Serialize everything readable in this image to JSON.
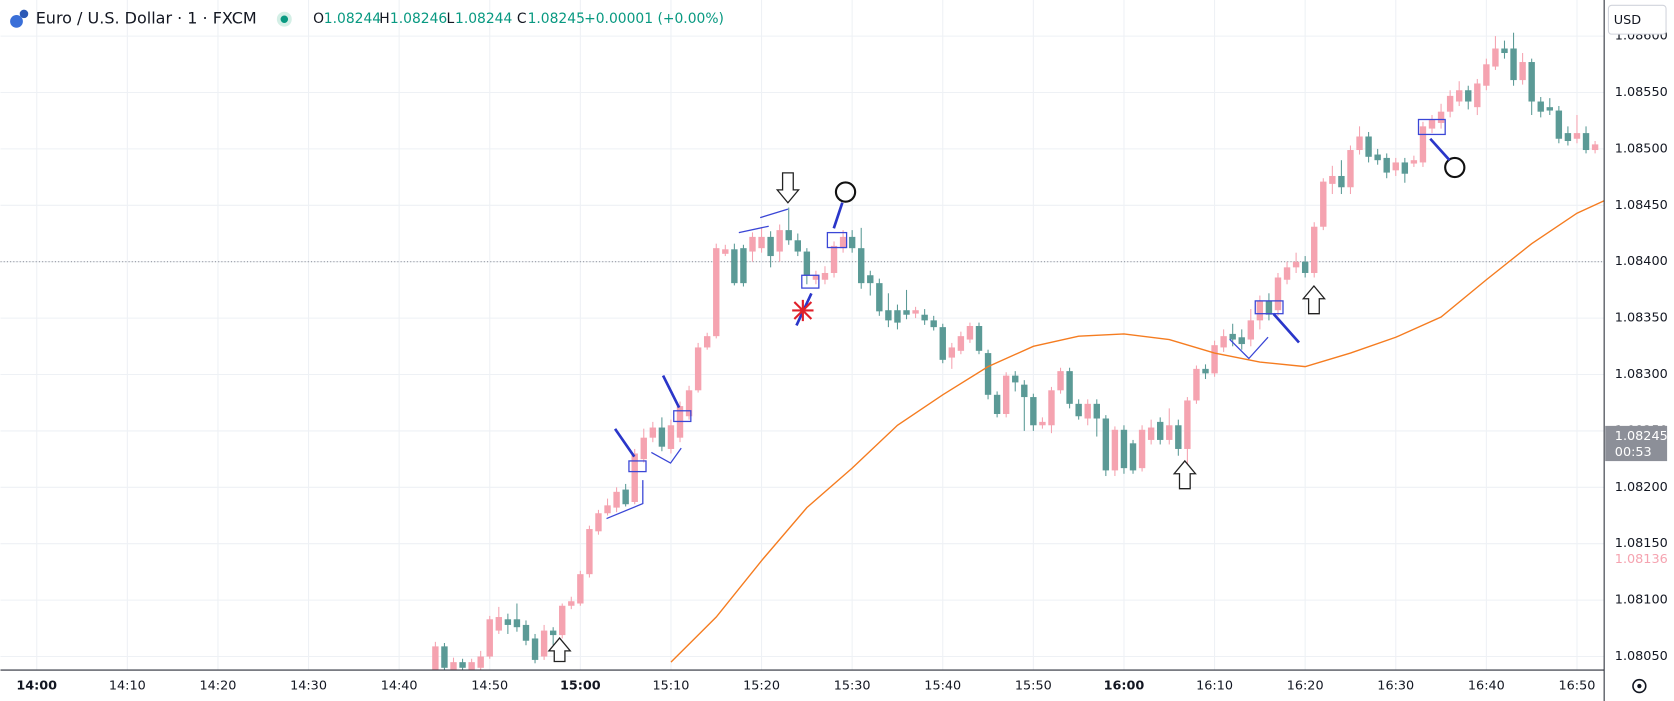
{
  "header": {
    "symbol": "Euro / U.S. Dollar · 1 · FXCM",
    "ohlc": [
      [
        "O",
        "1.08244"
      ],
      [
        "H",
        "1.08246"
      ],
      [
        "L",
        "1.08244"
      ],
      [
        "C",
        "1.08245"
      ]
    ],
    "change": "+0.00001 (+0.00%)",
    "currency": "USD",
    "countdown": "00:53"
  },
  "chart_data": {
    "type": "candlestick",
    "up_color": "#f5a3b0",
    "down_color": "#5b9a96",
    "grid": true,
    "xlim": [
      "13:56",
      "16:53"
    ],
    "ylim": [
      1.08038,
      1.08632
    ],
    "xticks": [
      "14:00",
      "14:10",
      "14:20",
      "14:30",
      "14:40",
      "14:50",
      "15:00",
      "15:10",
      "15:20",
      "15:30",
      "15:40",
      "15:50",
      "16:00",
      "16:10",
      "16:20",
      "16:30",
      "16:40",
      "16:50"
    ],
    "yticks": [
      {
        "value": 1.0805,
        "label": "1.08050"
      },
      {
        "value": 1.081,
        "label": "1.08100"
      },
      {
        "value": 1.0815,
        "label": "1.08150"
      },
      {
        "value": 1.082,
        "label": "1.08200"
      },
      {
        "value": 1.0825,
        "label": "1.08250"
      },
      {
        "value": 1.083,
        "label": "1.08300"
      },
      {
        "value": 1.0835,
        "label": "1.08350"
      },
      {
        "value": 1.084,
        "label": "1.08400"
      },
      {
        "value": 1.0845,
        "label": "1.08450"
      },
      {
        "value": 1.085,
        "label": "1.08500"
      },
      {
        "value": 1.0855,
        "label": "1.08550"
      },
      {
        "value": 1.086,
        "label": "1.08600"
      }
    ],
    "x": [
      "14:44",
      "14:45",
      "14:46",
      "14:47",
      "14:48",
      "14:49",
      "14:50",
      "14:51",
      "14:52",
      "14:53",
      "14:54",
      "14:55",
      "14:56",
      "14:57",
      "14:58",
      "14:59",
      "15:00",
      "15:01",
      "15:02",
      "15:03",
      "15:04",
      "15:05",
      "15:06",
      "15:07",
      "15:08",
      "15:09",
      "15:10",
      "15:11",
      "15:12",
      "15:13",
      "15:14",
      "15:15",
      "15:16",
      "15:17",
      "15:18",
      "15:19",
      "15:20",
      "15:21",
      "15:22",
      "15:23",
      "15:24",
      "15:25",
      "15:26",
      "15:27",
      "15:28",
      "15:29",
      "15:30",
      "15:31",
      "15:32",
      "15:33",
      "15:34",
      "15:35",
      "15:36",
      "15:37",
      "15:38",
      "15:39",
      "15:40",
      "15:41",
      "15:42",
      "15:43",
      "15:44",
      "15:45",
      "15:46",
      "15:47",
      "15:48",
      "15:49",
      "15:50",
      "15:51",
      "15:52",
      "15:53",
      "15:54",
      "15:55",
      "15:56",
      "15:57",
      "15:58",
      "15:59",
      "16:00",
      "16:01",
      "16:02",
      "16:03",
      "16:04",
      "16:05",
      "16:06",
      "16:07",
      "16:08",
      "16:09",
      "16:10",
      "16:11",
      "16:12",
      "16:13",
      "16:14",
      "16:15",
      "16:16",
      "16:17",
      "16:18",
      "16:19",
      "16:20",
      "16:21",
      "16:22",
      "16:23",
      "16:24",
      "16:25",
      "16:26",
      "16:27",
      "16:28",
      "16:29",
      "16:30",
      "16:31",
      "16:32",
      "16:33",
      "16:34",
      "16:35",
      "16:36",
      "16:37",
      "16:38",
      "16:39",
      "16:40",
      "16:41",
      "16:42",
      "16:43",
      "16:44",
      "16:45",
      "16:46",
      "16:47",
      "16:48",
      "16:49",
      "16:50",
      "16:51",
      "16:52"
    ],
    "open": [
      1.08035,
      1.08059,
      1.08037,
      1.08045,
      1.08035,
      1.0804,
      1.0805,
      1.08073,
      1.08083,
      1.08083,
      1.08078,
      1.08066,
      1.0805,
      1.08073,
      1.08069,
      1.08095,
      1.08097,
      1.08123,
      1.08161,
      1.08177,
      1.08182,
      1.08198,
      1.08187,
      1.08225,
      1.08244,
      1.08253,
      1.08234,
      1.08244,
      1.08263,
      1.08286,
      1.08324,
      1.08334,
      1.08407,
      1.08411,
      1.08412,
      1.08409,
      1.08412,
      1.08422,
      1.08409,
      1.08428,
      1.08419,
      1.08409,
      1.08384,
      1.08384,
      1.0839,
      1.08412,
      1.08422,
      1.08412,
      1.08388,
      1.08381,
      1.08357,
      1.08357,
      1.08357,
      1.08354,
      1.08353,
      1.08348,
      1.08342,
      1.08315,
      1.08321,
      1.08331,
      1.08343,
      1.08319,
      1.08282,
      1.08265,
      1.08299,
      1.08291,
      1.0828,
      1.08255,
      1.08255,
      1.08286,
      1.08303,
      1.08274,
      1.08261,
      1.08274,
      1.08261,
      1.08215,
      1.08251,
      1.08239,
      1.08217,
      1.08242,
      1.08258,
      1.08242,
      1.08255,
      1.08234,
      1.08277,
      1.08305,
      1.08301,
      1.08324,
      1.08336,
      1.08333,
      1.08331,
      1.08348,
      1.08365,
      1.08357,
      1.08384,
      1.08395,
      1.084,
      1.0839,
      1.08431,
      1.08469,
      1.08476,
      1.08466,
      1.08499,
      1.08511,
      1.08495,
      1.08492,
      1.08481,
      1.08488,
      1.08487,
      1.08488,
      1.08518,
      1.08523,
      1.08533,
      1.08542,
      1.08552,
      1.08537,
      1.08556,
      1.08573,
      1.08589,
      1.08589,
      1.08561,
      1.08577,
      1.08542,
      1.08537,
      1.08534,
      1.08514,
      1.08509,
      1.08514,
      1.08499
    ],
    "high": [
      1.08063,
      1.08062,
      1.08049,
      1.08048,
      1.08048,
      1.08055,
      1.08086,
      1.08094,
      1.08088,
      1.08097,
      1.08082,
      1.0807,
      1.08078,
      1.08076,
      1.08097,
      1.08103,
      1.08126,
      1.08166,
      1.0818,
      1.0819,
      1.082,
      1.08203,
      1.08234,
      1.08252,
      1.08258,
      1.08262,
      1.0826,
      1.08276,
      1.0829,
      1.08328,
      1.08337,
      1.08416,
      1.08415,
      1.08416,
      1.08415,
      1.08426,
      1.0843,
      1.08427,
      1.08433,
      1.08448,
      1.08425,
      1.08412,
      1.08392,
      1.08396,
      1.08418,
      1.08428,
      1.08428,
      1.0843,
      1.08392,
      1.08385,
      1.08372,
      1.08362,
      1.08375,
      1.0836,
      1.08358,
      1.08352,
      1.08345,
      1.08328,
      1.08338,
      1.08346,
      1.08346,
      1.08322,
      1.08285,
      1.08302,
      1.08303,
      1.08295,
      1.08283,
      1.08262,
      1.08289,
      1.08306,
      1.08306,
      1.08278,
      1.08278,
      1.08278,
      1.08264,
      1.08254,
      1.08255,
      1.08242,
      1.08255,
      1.0826,
      1.08262,
      1.0827,
      1.0826,
      1.0828,
      1.08308,
      1.08309,
      1.0833,
      1.0834,
      1.08345,
      1.0834,
      1.08358,
      1.0837,
      1.08372,
      1.0839,
      1.084,
      1.08408,
      1.08405,
      1.08435,
      1.08474,
      1.08485,
      1.0849,
      1.08503,
      1.0852,
      1.08515,
      1.085,
      1.08496,
      1.08492,
      1.08492,
      1.08494,
      1.08524,
      1.0853,
      1.0854,
      1.08552,
      1.0856,
      1.08556,
      1.08562,
      1.0858,
      1.086,
      1.08596,
      1.08603,
      1.08585,
      1.0858,
      1.08546,
      1.08545,
      1.08538,
      1.0852,
      1.0853,
      1.0852,
      1.08507
    ],
    "low": [
      1.08032,
      1.08036,
      1.08034,
      1.08036,
      1.08032,
      1.08038,
      1.08048,
      1.0807,
      1.0807,
      1.08072,
      1.0806,
      1.08044,
      1.08047,
      1.0806,
      1.08066,
      1.08092,
      1.08095,
      1.0812,
      1.08158,
      1.08175,
      1.08178,
      1.08183,
      1.08185,
      1.08222,
      1.0824,
      1.08232,
      1.0823,
      1.0824,
      1.0826,
      1.08284,
      1.08322,
      1.08332,
      1.08405,
      1.08379,
      1.08378,
      1.084,
      1.08408,
      1.08395,
      1.084,
      1.08415,
      1.08405,
      1.0838,
      1.0838,
      1.0838,
      1.08386,
      1.08408,
      1.08408,
      1.08376,
      1.0837,
      1.08352,
      1.08342,
      1.0834,
      1.08349,
      1.0835,
      1.08344,
      1.08339,
      1.0831,
      1.08305,
      1.08318,
      1.08328,
      1.08318,
      1.08278,
      1.08262,
      1.08262,
      1.08285,
      1.0825,
      1.0825,
      1.08252,
      1.08248,
      1.08283,
      1.0827,
      1.0826,
      1.08255,
      1.08245,
      1.0821,
      1.0821,
      1.08212,
      1.08212,
      1.08214,
      1.08238,
      1.08238,
      1.08238,
      1.08228,
      1.0822,
      1.08274,
      1.08296,
      1.08298,
      1.0832,
      1.08325,
      1.08322,
      1.08325,
      1.0834,
      1.08348,
      1.08352,
      1.0838,
      1.0839,
      1.08386,
      1.08386,
      1.08428,
      1.0846,
      1.0846,
      1.0846,
      1.08495,
      1.08488,
      1.08486,
      1.08474,
      1.08476,
      1.0847,
      1.08484,
      1.08484,
      1.08514,
      1.08518,
      1.08528,
      1.08538,
      1.08535,
      1.0853,
      1.08552,
      1.0857,
      1.0858,
      1.08556,
      1.08557,
      1.0853,
      1.08528,
      1.0853,
      1.08505,
      1.08503,
      1.08505,
      1.08496,
      1.08496
    ],
    "close": [
      1.08059,
      1.0804,
      1.08045,
      1.0804,
      1.08045,
      1.0805,
      1.08083,
      1.08085,
      1.08078,
      1.08076,
      1.08064,
      1.08047,
      1.08073,
      1.08069,
      1.08095,
      1.08099,
      1.08123,
      1.08163,
      1.08177,
      1.08184,
      1.08196,
      1.08185,
      1.0823,
      1.08244,
      1.08253,
      1.08236,
      1.08255,
      1.08272,
      1.08286,
      1.08324,
      1.08334,
      1.08412,
      1.08411,
      1.08381,
      1.08381,
      1.08422,
      1.08422,
      1.08405,
      1.08428,
      1.08419,
      1.08409,
      1.08388,
      1.08388,
      1.0839,
      1.08414,
      1.08422,
      1.08412,
      1.08381,
      1.08381,
      1.08356,
      1.08348,
      1.08346,
      1.08353,
      1.08357,
      1.08348,
      1.08342,
      1.08313,
      1.08324,
      1.08334,
      1.08343,
      1.08321,
      1.08282,
      1.08265,
      1.08299,
      1.08293,
      1.0828,
      1.08255,
      1.08258,
      1.08286,
      1.08303,
      1.08274,
      1.08263,
      1.08274,
      1.08261,
      1.08215,
      1.08251,
      1.08217,
      1.08215,
      1.08251,
      1.08253,
      1.08242,
      1.08255,
      1.08234,
      1.08277,
      1.08305,
      1.08301,
      1.08326,
      1.08334,
      1.08331,
      1.08327,
      1.08348,
      1.08365,
      1.08353,
      1.08386,
      1.08395,
      1.084,
      1.0839,
      1.08431,
      1.08471,
      1.08476,
      1.08466,
      1.08499,
      1.08511,
      1.08493,
      1.0849,
      1.08479,
      1.08488,
      1.08478,
      1.0849,
      1.0852,
      1.08526,
      1.08533,
      1.08547,
      1.08552,
      1.08542,
      1.08558,
      1.08575,
      1.08589,
      1.08585,
      1.08561,
      1.08577,
      1.08542,
      1.08533,
      1.08534,
      1.08509,
      1.08507,
      1.08514,
      1.08499,
      1.08504
    ],
    "ma": {
      "color": "#f57c20",
      "x": [
        "15:10",
        "15:15",
        "15:20",
        "15:25",
        "15:30",
        "15:35",
        "15:40",
        "15:45",
        "15:50",
        "15:55",
        "16:00",
        "16:05",
        "16:10",
        "16:15",
        "16:20",
        "16:25",
        "16:30",
        "16:35",
        "16:40",
        "16:45",
        "16:50",
        "16:53"
      ],
      "values": [
        1.08045,
        1.08085,
        1.08135,
        1.08182,
        1.08217,
        1.08255,
        1.08282,
        1.08307,
        1.08325,
        1.08334,
        1.08336,
        1.08331,
        1.08319,
        1.08311,
        1.08307,
        1.08319,
        1.08333,
        1.08351,
        1.08384,
        1.08416,
        1.08443,
        1.08454
      ]
    },
    "price_line": 1.084,
    "last_price": 1.08245,
    "marker_price": 1.08136
  }
}
